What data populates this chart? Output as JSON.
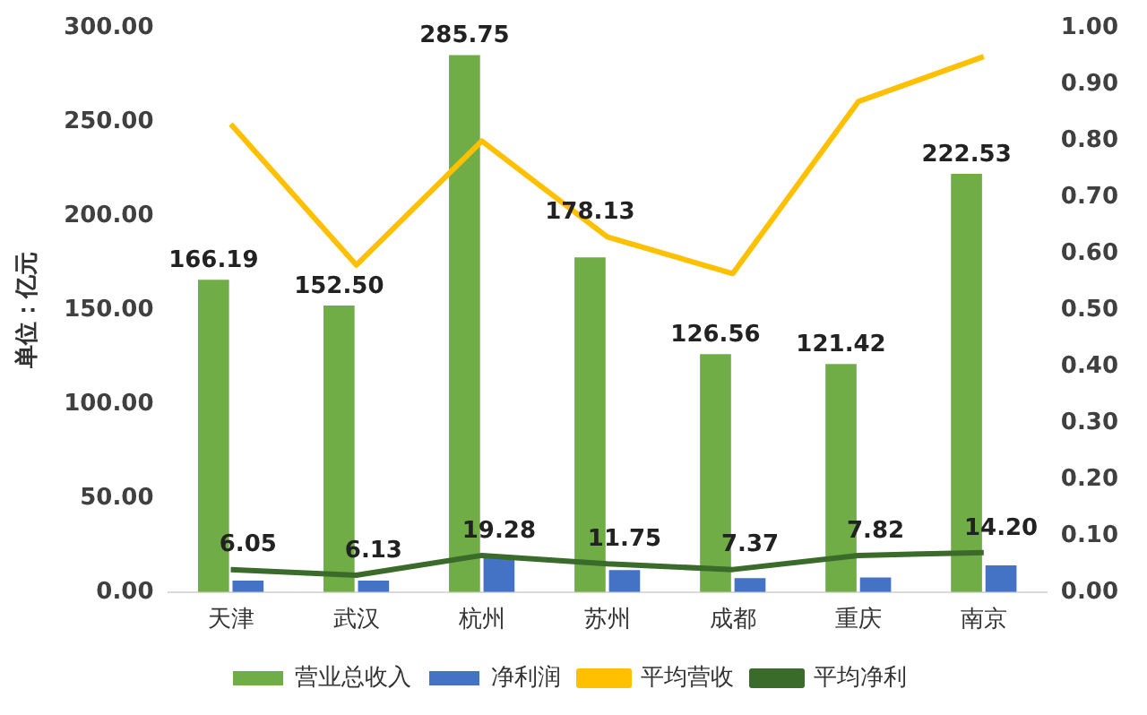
{
  "chart_data": {
    "type": "bar",
    "ylabel": "单位：亿元",
    "categories": [
      "天津",
      "武汉",
      "杭州",
      "苏州",
      "成都",
      "重庆",
      "南京"
    ],
    "series": [
      {
        "name": "营业总收入",
        "color": "#70ad47",
        "values": [
          166.19,
          152.5,
          285.75,
          178.13,
          126.56,
          121.42,
          222.53
        ],
        "value_labels": [
          "166.19",
          "152.50",
          "285.75",
          "178.13",
          "126.56",
          "121.42",
          "222.53"
        ]
      },
      {
        "name": "净利润",
        "color": "#4472c4",
        "values": [
          6.05,
          6.13,
          19.28,
          11.75,
          7.37,
          7.82,
          14.2
        ],
        "value_labels": [
          "6.05",
          "6.13",
          "19.28",
          "11.75",
          "7.37",
          "7.82",
          "14.20"
        ]
      },
      {
        "name": "平均营收",
        "type": "line",
        "axis": "y2",
        "color": "#ffc000",
        "values": [
          0.83,
          0.58,
          0.8,
          0.63,
          0.565,
          0.87,
          0.95
        ]
      },
      {
        "name": "平均净利",
        "type": "line",
        "axis": "y2",
        "color": "#3a6b2a",
        "values": [
          0.04,
          0.03,
          0.065,
          0.05,
          0.04,
          0.065,
          0.07
        ]
      }
    ],
    "ylim": [
      0,
      300
    ],
    "yticks": [
      {
        "value": 0,
        "label": "0.00"
      },
      {
        "value": 50,
        "label": "50.00"
      },
      {
        "value": 100,
        "label": "100.00"
      },
      {
        "value": 150,
        "label": "150.00"
      },
      {
        "value": 200,
        "label": "200.00"
      },
      {
        "value": 250,
        "label": "250.00"
      },
      {
        "value": 300,
        "label": "300.00"
      }
    ],
    "y2lim": [
      0,
      1
    ],
    "y2ticks": [
      {
        "value": 0,
        "label": "0.00"
      },
      {
        "value": 0.1,
        "label": "0.10"
      },
      {
        "value": 0.2,
        "label": "0.20"
      },
      {
        "value": 0.3,
        "label": "0.30"
      },
      {
        "value": 0.4,
        "label": "0.40"
      },
      {
        "value": 0.5,
        "label": "0.50"
      },
      {
        "value": 0.6,
        "label": "0.60"
      },
      {
        "value": 0.7,
        "label": "0.70"
      },
      {
        "value": 0.8,
        "label": "0.80"
      },
      {
        "value": 0.9,
        "label": "0.90"
      },
      {
        "value": 1,
        "label": "1.00"
      }
    ],
    "grid": false,
    "legend": "bottom",
    "marker": "none",
    "line_style": "solid"
  }
}
